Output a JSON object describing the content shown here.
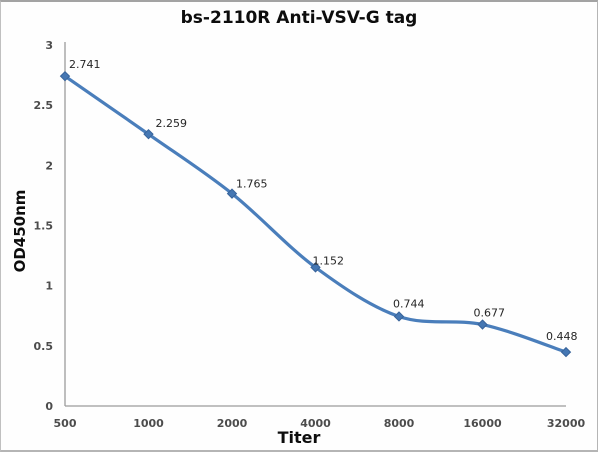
{
  "chart_data": {
    "type": "line",
    "title": "bs-2110R Anti-VSV-G tag",
    "xlabel": "Titer",
    "ylabel": "OD450nm",
    "categories": [
      "500",
      "1000",
      "2000",
      "4000",
      "8000",
      "16000",
      "32000"
    ],
    "series": [
      {
        "name": "OD450nm",
        "values": [
          2.741,
          2.259,
          1.765,
          1.152,
          0.744,
          0.677,
          0.448
        ],
        "point_labels": [
          "2.741",
          "2.259",
          "1.765",
          "1.152",
          "0.744",
          "0.677",
          "0.448"
        ]
      }
    ],
    "ylim": [
      0,
      3
    ],
    "y_ticks": [
      "0",
      "0.5",
      "1",
      "1.5",
      "2",
      "2.5",
      "3"
    ],
    "grid": false,
    "legend": "none",
    "smooth_line": true,
    "marker": "diamond",
    "colors": {
      "line": "#4a7ebb",
      "marker_fill": "#4577b3",
      "marker_edge": "#38639a",
      "axis_line": "#9b9b9b",
      "tick_label": "#4c4c4c",
      "data_label": "#262626",
      "title": "#0d0d0d"
    },
    "label_dx": [
      4,
      7,
      4,
      -3,
      -6,
      -9,
      -20
    ],
    "label_dy": [
      -8,
      -7,
      -6,
      -3,
      -9,
      -8,
      -12
    ]
  }
}
